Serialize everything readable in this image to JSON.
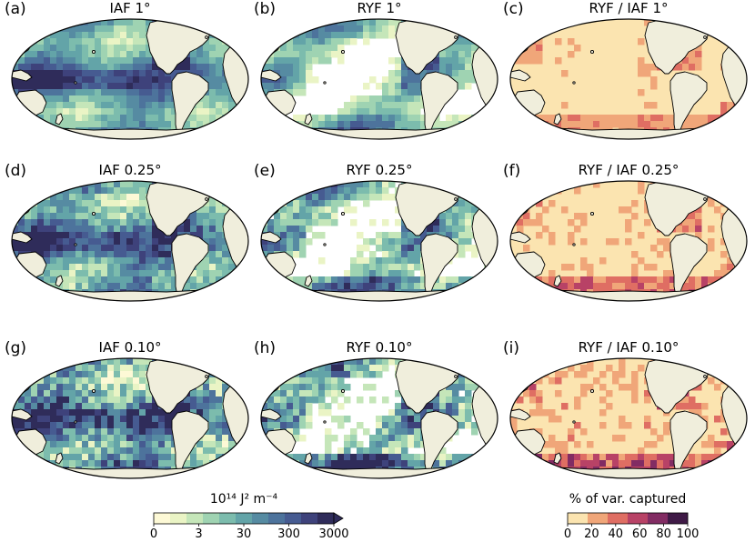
{
  "chart_data": {
    "type": "heatmap",
    "layout": {
      "rows": 3,
      "cols": 3
    },
    "panels": [
      {
        "label": "(a)",
        "title": "IAF 1°",
        "scale": "variance",
        "detail": 1
      },
      {
        "label": "(b)",
        "title": "RYF 1°",
        "scale": "variance",
        "detail": 1
      },
      {
        "label": "(c)",
        "title": "RYF / IAF 1°",
        "scale": "percent",
        "detail": 1
      },
      {
        "label": "(d)",
        "title": "IAF 0.25°",
        "scale": "variance",
        "detail": 2
      },
      {
        "label": "(e)",
        "title": "RYF 0.25°",
        "scale": "variance",
        "detail": 2
      },
      {
        "label": "(f)",
        "title": "RYF / IAF 0.25°",
        "scale": "percent",
        "detail": 2
      },
      {
        "label": "(g)",
        "title": "IAF 0.10°",
        "scale": "variance",
        "detail": 3
      },
      {
        "label": "(h)",
        "title": "RYF 0.10°",
        "scale": "variance",
        "detail": 3
      },
      {
        "label": "(i)",
        "title": "RYF / IAF 0.10°",
        "scale": "percent",
        "detail": 3
      }
    ],
    "colorbars": [
      {
        "id": "variance",
        "label": "10¹⁴ J² m⁻⁴",
        "scale": "log",
        "extend": "max",
        "ticks": [
          "0",
          "3",
          "30",
          "300",
          "3000"
        ],
        "colors": [
          "#fdf9d6",
          "#eaf4c5",
          "#c5e6b9",
          "#9fd3b2",
          "#7cbcad",
          "#63a4a8",
          "#568ba2",
          "#4d739c",
          "#465b91",
          "#3e427b",
          "#2f2c5a"
        ]
      },
      {
        "id": "percent",
        "label": "% of var. captured",
        "scale": "linear",
        "extend": "neither",
        "ticks": [
          "0",
          "20",
          "40",
          "60",
          "80",
          "100"
        ],
        "colors": [
          "#fbe4b0",
          "#f0a679",
          "#df6e63",
          "#b84266",
          "#822c63",
          "#3f1a46"
        ]
      }
    ],
    "land_color": "#f0eedc",
    "ocean_nodata_color": "#ffffff"
  }
}
